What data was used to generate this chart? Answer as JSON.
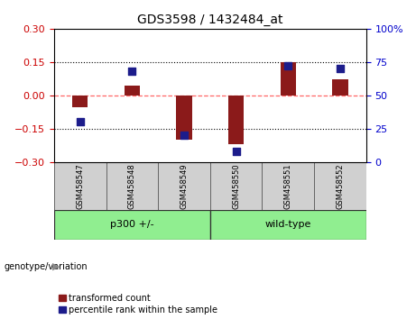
{
  "title": "GDS3598 / 1432484_at",
  "categories": [
    "GSM458547",
    "GSM458548",
    "GSM458549",
    "GSM458550",
    "GSM458551",
    "GSM458552"
  ],
  "red_bars": [
    -0.055,
    0.045,
    -0.2,
    -0.22,
    0.148,
    0.07
  ],
  "blue_dots": [
    30,
    68,
    20,
    8,
    72,
    70
  ],
  "ylim_left": [
    -0.3,
    0.3
  ],
  "ylim_right": [
    0,
    100
  ],
  "yticks_left": [
    -0.3,
    -0.15,
    0,
    0.15,
    0.3
  ],
  "yticks_right": [
    0,
    25,
    50,
    75,
    100
  ],
  "group1_label": "p300 +/-",
  "group2_label": "wild-type",
  "group_label": "genotype/variation",
  "group_color": "#90EE90",
  "bar_color": "#8B1A1A",
  "dot_color": "#1C1C8B",
  "red_line_color": "#FF6666",
  "dotted_line_color": "#000000",
  "bg_color": "#FFFFFF",
  "plot_bg": "#FFFFFF",
  "sample_box_color": "#D0D0D0",
  "legend_items": [
    "transformed count",
    "percentile rank within the sample"
  ],
  "bar_width": 0.3,
  "dot_size": 35,
  "left_tick_color": "#CC0000",
  "right_tick_color": "#0000CC"
}
